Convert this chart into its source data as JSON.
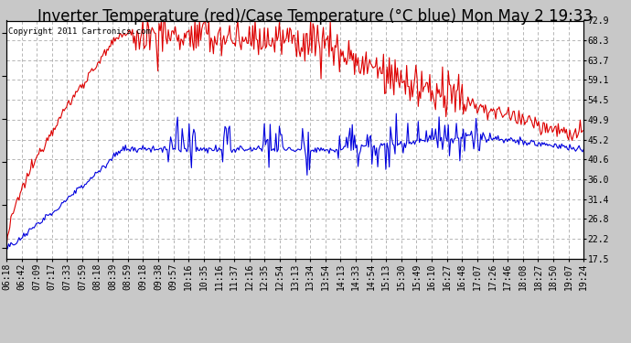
{
  "title": "Inverter Temperature (red)/Case Temperature (°C blue) Mon May 2 19:33",
  "copyright": "Copyright 2011 Cartronics.com",
  "bg_color": "#c8c8c8",
  "plot_bg_color": "#ffffff",
  "grid_color": "#aaaaaa",
  "red_color": "#dd0000",
  "blue_color": "#0000dd",
  "y_ticks": [
    17.5,
    22.2,
    26.8,
    31.4,
    36.0,
    40.6,
    45.2,
    49.9,
    54.5,
    59.1,
    63.7,
    68.3,
    72.9
  ],
  "x_labels": [
    "06:18",
    "06:42",
    "07:09",
    "07:17",
    "07:33",
    "07:59",
    "08:18",
    "08:39",
    "08:59",
    "09:18",
    "09:38",
    "09:57",
    "10:16",
    "10:35",
    "11:16",
    "11:37",
    "12:16",
    "12:35",
    "12:54",
    "13:13",
    "13:34",
    "13:54",
    "14:13",
    "14:33",
    "14:54",
    "15:13",
    "15:30",
    "15:49",
    "16:10",
    "16:27",
    "16:48",
    "17:07",
    "17:26",
    "17:46",
    "18:08",
    "18:27",
    "18:50",
    "19:07",
    "19:24"
  ],
  "title_fontsize": 12,
  "tick_fontsize": 7,
  "copyright_fontsize": 6.5,
  "y_min": 17.5,
  "y_max": 72.9
}
